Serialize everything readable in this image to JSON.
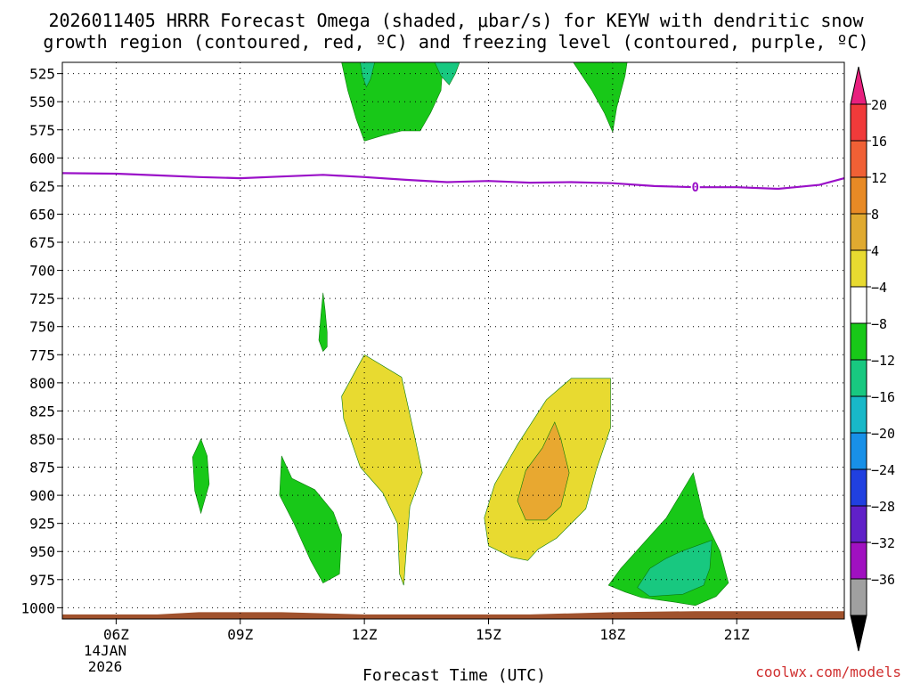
{
  "chart_data": {
    "type": "area",
    "title_line1": "2026011405 HRRR Forecast Omega (shaded, μbar/s) for KEYW with dendritic snow",
    "title_line2": "growth region (contoured, red, ºC) and freezing level (contoured, purple, ºC)",
    "xlabel": "Forecast Time (UTC)",
    "credit": "coolwx.com/models",
    "x_range": [
      4.7,
      23.6
    ],
    "x_ticks": [
      {
        "value": 6,
        "label": "06Z"
      },
      {
        "value": 9,
        "label": "09Z"
      },
      {
        "value": 12,
        "label": "12Z"
      },
      {
        "value": 15,
        "label": "15Z"
      },
      {
        "value": 18,
        "label": "18Z"
      },
      {
        "value": 21,
        "label": "21Z"
      }
    ],
    "date_line1": "14JAN",
    "date_line2": "2026",
    "y_range": [
      515,
      1010
    ],
    "y_ticks": [
      "525",
      "550",
      "575",
      "600",
      "625",
      "650",
      "675",
      "700",
      "725",
      "750",
      "775",
      "800",
      "825",
      "850",
      "875",
      "900",
      "925",
      "950",
      "975",
      "1000"
    ],
    "colorbar": {
      "labels": [
        "20",
        "16",
        "12",
        "8",
        "4",
        "−4",
        "−8",
        "−12",
        "−16",
        "−20",
        "−24",
        "−28",
        "−32",
        "−36"
      ],
      "levels": [
        20,
        16,
        12,
        8,
        4,
        -4,
        -8,
        -12,
        -16,
        -20,
        -24,
        -28,
        -32,
        -36
      ],
      "over_color": "#e8207e",
      "under_color": "#000000",
      "colors": [
        "#f03a3a",
        "#f06035",
        "#e88a25",
        "#e0aa30",
        "#e8da30",
        "#ffffff",
        "#18c818",
        "#18c880",
        "#18b8c8",
        "#1890e8",
        "#2040e0",
        "#6020c8",
        "#a010c0",
        "#a0a0a0"
      ]
    },
    "regions": [
      {
        "name": "omega-green-upper-1200",
        "color": "#18c818",
        "points": [
          [
            11.45,
            515
          ],
          [
            13.9,
            515
          ],
          [
            13.85,
            540
          ],
          [
            13.6,
            560
          ],
          [
            13.35,
            576
          ],
          [
            12.9,
            576
          ],
          [
            12.45,
            580
          ],
          [
            12.0,
            585
          ],
          [
            11.8,
            565
          ],
          [
            11.6,
            540
          ]
        ]
      },
      {
        "name": "omega-teal-upper-1200",
        "color": "#18c880",
        "points": [
          [
            11.9,
            515
          ],
          [
            12.25,
            515
          ],
          [
            12.15,
            530
          ],
          [
            12.05,
            537
          ],
          [
            11.95,
            527
          ]
        ]
      },
      {
        "name": "omega-teal-upper-1340",
        "color": "#18c880",
        "points": [
          [
            13.7,
            515
          ],
          [
            14.3,
            515
          ],
          [
            14.2,
            525
          ],
          [
            14.05,
            535
          ],
          [
            13.85,
            527
          ]
        ]
      },
      {
        "name": "omega-green-upper-1730",
        "color": "#18c818",
        "points": [
          [
            17.05,
            515
          ],
          [
            18.35,
            515
          ],
          [
            18.3,
            527
          ],
          [
            18.1,
            555
          ],
          [
            18.0,
            577
          ],
          [
            17.8,
            560
          ],
          [
            17.5,
            540
          ]
        ]
      },
      {
        "name": "omega-green-freezing-ribbon",
        "color": "#18c818",
        "points": [
          [
            11.0,
            720
          ],
          [
            11.05,
            735
          ],
          [
            11.1,
            755
          ],
          [
            11.1,
            768
          ],
          [
            11.0,
            772
          ],
          [
            10.9,
            762
          ],
          [
            10.95,
            740
          ]
        ]
      },
      {
        "name": "omega-green-850",
        "color": "#18c818",
        "points": [
          [
            8.05,
            850
          ],
          [
            8.2,
            865
          ],
          [
            8.25,
            890
          ],
          [
            8.05,
            916
          ],
          [
            7.9,
            896
          ],
          [
            7.85,
            866
          ]
        ]
      },
      {
        "name": "omega-green-900",
        "color": "#18c818",
        "points": [
          [
            10.0,
            865
          ],
          [
            10.25,
            885
          ],
          [
            10.8,
            895
          ],
          [
            11.25,
            915
          ],
          [
            11.45,
            935
          ],
          [
            11.4,
            970
          ],
          [
            11.0,
            978
          ],
          [
            10.7,
            958
          ],
          [
            10.3,
            925
          ],
          [
            9.95,
            900
          ]
        ]
      },
      {
        "name": "omega-yellow-800",
        "color": "#e8da30",
        "points": [
          [
            12.0,
            775
          ],
          [
            12.9,
            795
          ],
          [
            13.2,
            845
          ],
          [
            13.4,
            880
          ],
          [
            13.1,
            910
          ],
          [
            13.0,
            955
          ],
          [
            12.95,
            980
          ],
          [
            12.85,
            970
          ],
          [
            12.8,
            925
          ],
          [
            12.45,
            898
          ],
          [
            11.9,
            875
          ],
          [
            11.5,
            832
          ],
          [
            11.45,
            812
          ]
        ]
      },
      {
        "name": "omega-yellow-850",
        "color": "#e8da30",
        "points": [
          [
            17.0,
            796
          ],
          [
            17.95,
            796
          ],
          [
            17.95,
            840
          ],
          [
            17.6,
            878
          ],
          [
            17.35,
            912
          ],
          [
            16.65,
            938
          ],
          [
            16.2,
            948
          ],
          [
            15.95,
            958
          ],
          [
            15.55,
            955
          ],
          [
            15.0,
            945
          ],
          [
            14.9,
            920
          ],
          [
            15.15,
            890
          ],
          [
            15.7,
            855
          ],
          [
            16.4,
            815
          ]
        ]
      },
      {
        "name": "omega-orange-880",
        "color": "#e8a830",
        "points": [
          [
            16.6,
            835
          ],
          [
            16.75,
            850
          ],
          [
            16.95,
            880
          ],
          [
            16.75,
            910
          ],
          [
            16.4,
            922
          ],
          [
            15.9,
            922
          ],
          [
            15.7,
            905
          ],
          [
            15.9,
            878
          ],
          [
            16.3,
            858
          ]
        ]
      },
      {
        "name": "omega-green-950",
        "color": "#18c818",
        "points": [
          [
            19.95,
            880
          ],
          [
            20.2,
            920
          ],
          [
            20.6,
            950
          ],
          [
            20.8,
            978
          ],
          [
            20.5,
            990
          ],
          [
            20.0,
            998
          ],
          [
            19.5,
            995
          ],
          [
            18.7,
            991
          ],
          [
            18.3,
            986
          ],
          [
            17.9,
            980
          ],
          [
            18.2,
            965
          ],
          [
            19.3,
            920
          ]
        ]
      },
      {
        "name": "omega-teal-970",
        "color": "#18c880",
        "points": [
          [
            19.65,
            950
          ],
          [
            20.4,
            940
          ],
          [
            20.35,
            965
          ],
          [
            20.2,
            980
          ],
          [
            19.7,
            988
          ],
          [
            18.9,
            990
          ],
          [
            18.6,
            982
          ],
          [
            18.9,
            965
          ],
          [
            19.3,
            956
          ]
        ]
      }
    ],
    "freezing_level": {
      "label": "0",
      "label_x": 20.0,
      "points": [
        [
          4.7,
          613.5
        ],
        [
          6.0,
          614
        ],
        [
          7.0,
          615.5
        ],
        [
          8.0,
          617
        ],
        [
          9.0,
          618
        ],
        [
          10.0,
          616.5
        ],
        [
          11.0,
          615
        ],
        [
          12.0,
          617
        ],
        [
          13.0,
          619.5
        ],
        [
          14.0,
          621.5
        ],
        [
          15.0,
          620.5
        ],
        [
          16.0,
          622
        ],
        [
          17.0,
          621.5
        ],
        [
          18.0,
          622.5
        ],
        [
          19.0,
          625
        ],
        [
          20.0,
          626
        ],
        [
          21.0,
          626
        ],
        [
          22.0,
          627.5
        ],
        [
          23.0,
          624
        ],
        [
          23.6,
          618
        ]
      ]
    },
    "ground": {
      "color": "#a0522d",
      "points": [
        [
          4.7,
          1006
        ],
        [
          7.0,
          1006
        ],
        [
          8.0,
          1004
        ],
        [
          10.0,
          1004
        ],
        [
          12.0,
          1006
        ],
        [
          16.0,
          1006
        ],
        [
          18.0,
          1004
        ],
        [
          20.0,
          1003
        ],
        [
          23.6,
          1003
        ],
        [
          23.6,
          1010
        ],
        [
          4.7,
          1010
        ]
      ]
    }
  }
}
